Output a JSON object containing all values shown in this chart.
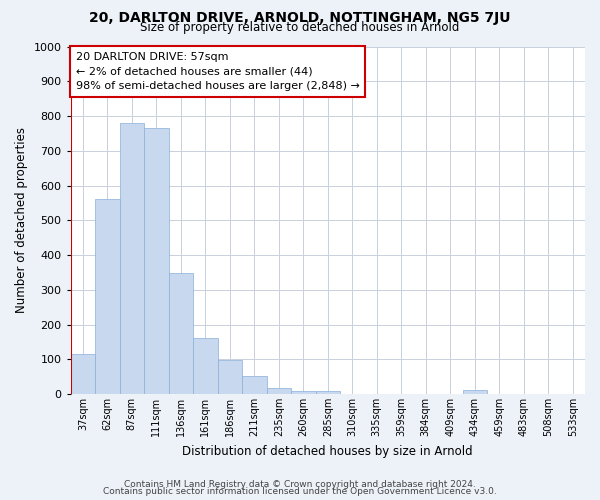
{
  "title": "20, DARLTON DRIVE, ARNOLD, NOTTINGHAM, NG5 7JU",
  "subtitle": "Size of property relative to detached houses in Arnold",
  "xlabel": "Distribution of detached houses by size in Arnold",
  "ylabel": "Number of detached properties",
  "bar_labels": [
    "37sqm",
    "62sqm",
    "87sqm",
    "111sqm",
    "136sqm",
    "161sqm",
    "186sqm",
    "211sqm",
    "235sqm",
    "260sqm",
    "285sqm",
    "310sqm",
    "335sqm",
    "359sqm",
    "384sqm",
    "409sqm",
    "434sqm",
    "459sqm",
    "483sqm",
    "508sqm",
    "533sqm"
  ],
  "bar_values": [
    115,
    560,
    780,
    765,
    348,
    162,
    98,
    52,
    18,
    10,
    8,
    0,
    0,
    0,
    0,
    0,
    12,
    0,
    0,
    0,
    0
  ],
  "bar_color": "#c8d8ee",
  "bar_edge_color": "#8ab0d8",
  "red_line_x": 0,
  "annotation_box_text": "20 DARLTON DRIVE: 57sqm\n← 2% of detached houses are smaller (44)\n98% of semi-detached houses are larger (2,848) →",
  "ylim": [
    0,
    1000
  ],
  "yticks": [
    0,
    100,
    200,
    300,
    400,
    500,
    600,
    700,
    800,
    900,
    1000
  ],
  "footer1": "Contains HM Land Registry data © Crown copyright and database right 2024.",
  "footer2": "Contains public sector information licensed under the Open Government Licence v3.0.",
  "bg_color": "#edf1f8",
  "plot_bg_color": "#ffffff",
  "grid_color": "#c8d0dc"
}
